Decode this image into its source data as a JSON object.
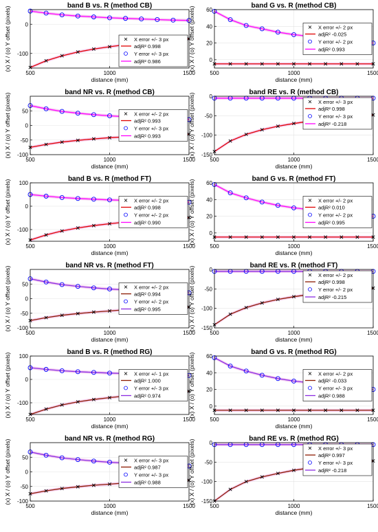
{
  "figure": {
    "xlabel": "distance (mm)",
    "ylabel": "(x) X / (o) Y offset (pixels)",
    "colors": {
      "fit_red": "#e00000",
      "fit_dark": "#8b1a00",
      "fit_magenta": "#ff00ff",
      "fit_purple": "#8a2be2",
      "marker_x": "#000000",
      "marker_o": "#0000ff",
      "band_pink": "#f4c6ee"
    }
  },
  "chart_data": [
    {
      "type": "scatter",
      "title": "band B vs. R (method CB)",
      "xlim": [
        500,
        1500
      ],
      "ylim": [
        -150,
        50
      ],
      "yticks": [
        -100,
        0
      ],
      "xticks": [
        500,
        1000,
        1500
      ],
      "grid": true,
      "legend_position": "bottom-right",
      "x_fit_color": "#e00000",
      "y_fit_color": "#ff00ff",
      "legend": {
        "x_error": "X error +/- 3 px",
        "x_r2": "adjR² 0.998",
        "y_error": "Y error +/- 3 px",
        "y_r2": "adjR² 0.986"
      },
      "series": [
        {
          "name": "X",
          "x": [
            500,
            600,
            700,
            800,
            900,
            1000,
            1100,
            1200,
            1300,
            1400,
            1500
          ],
          "y": [
            -148,
            -125,
            -108,
            -95,
            -85,
            -77,
            -70,
            -64,
            -59,
            -54,
            -50
          ]
        },
        {
          "name": "Y",
          "x": [
            500,
            600,
            700,
            800,
            900,
            1000,
            1100,
            1200,
            1300,
            1400,
            1500
          ],
          "y": [
            45,
            38,
            32,
            28,
            25,
            22,
            20,
            18,
            16,
            14,
            13
          ]
        }
      ]
    },
    {
      "type": "scatter",
      "title": "band G vs. R (method CB)",
      "xlim": [
        500,
        1500
      ],
      "ylim": [
        -10,
        60
      ],
      "yticks": [
        0,
        20,
        40,
        60
      ],
      "xticks": [
        500,
        1000,
        1500
      ],
      "grid": true,
      "legend_position": "right",
      "x_fit_color": "#e00000",
      "y_fit_color": "#ff00ff",
      "legend": {
        "x_error": "X error +/- 2 px",
        "x_r2": "adjR² -0.025",
        "y_error": "Y error +/- 2 px",
        "y_r2": "adjR² 0.993"
      },
      "series": [
        {
          "name": "X",
          "x": [
            500,
            600,
            700,
            800,
            900,
            1000,
            1100,
            1200,
            1300,
            1400,
            1500
          ],
          "y": [
            -5,
            -5,
            -5,
            -5,
            -5,
            -5,
            -5,
            -5,
            -5,
            -5,
            -5
          ]
        },
        {
          "name": "Y",
          "x": [
            500,
            600,
            700,
            800,
            900,
            1000,
            1100,
            1200,
            1300,
            1400,
            1500
          ],
          "y": [
            58,
            48,
            41,
            37,
            33,
            30,
            28,
            26,
            24,
            22,
            20
          ]
        }
      ]
    },
    {
      "type": "scatter",
      "title": "band NR vs. R (method CB)",
      "xlim": [
        500,
        1500
      ],
      "ylim": [
        -100,
        100
      ],
      "yticks": [
        -100,
        -50,
        0,
        50
      ],
      "xticks": [
        500,
        1000,
        1500
      ],
      "grid": true,
      "legend_position": "right",
      "x_fit_color": "#e00000",
      "y_fit_color": "#ff00ff",
      "legend": {
        "x_error": "X error +/- 2 px",
        "x_r2": "adjR² 0.993",
        "y_error": "Y error +/- 3 px",
        "y_r2": "adjR² 0.993"
      },
      "series": [
        {
          "name": "X",
          "x": [
            500,
            600,
            700,
            800,
            900,
            1000,
            1100,
            1200,
            1300,
            1400,
            1500
          ],
          "y": [
            -75,
            -65,
            -57,
            -51,
            -46,
            -42,
            -39,
            -36,
            -34,
            -32,
            -30
          ]
        },
        {
          "name": "Y",
          "x": [
            500,
            600,
            700,
            800,
            900,
            1000,
            1100,
            1200,
            1300,
            1400,
            1500
          ],
          "y": [
            68,
            57,
            48,
            42,
            37,
            33,
            30,
            27,
            25,
            23,
            20
          ]
        }
      ]
    },
    {
      "type": "scatter",
      "title": "band RE vs. R (method CB)",
      "xlim": [
        500,
        1500
      ],
      "ylim": [
        -150,
        0
      ],
      "yticks": [
        -150,
        -100,
        -50,
        0
      ],
      "xticks": [
        500,
        1000,
        1500
      ],
      "grid": true,
      "legend_position": "top-right",
      "x_fit_color": "#e00000",
      "y_fit_color": "#ff00ff",
      "legend": {
        "x_error": "X error +/- 3 px",
        "x_r2": "adjR² 0.998",
        "y_error": "Y error +/- 3 px",
        "y_r2": "adjR² -0.218"
      },
      "series": [
        {
          "name": "X",
          "x": [
            500,
            600,
            700,
            800,
            900,
            1000,
            1100,
            1200,
            1300,
            1400,
            1500
          ],
          "y": [
            -142,
            -115,
            -98,
            -86,
            -77,
            -70,
            -64,
            -59,
            -55,
            -51,
            -48
          ]
        },
        {
          "name": "Y",
          "x": [
            500,
            600,
            700,
            800,
            900,
            1000,
            1100,
            1200,
            1300,
            1400,
            1500
          ],
          "y": [
            -5,
            -5,
            -5,
            -5,
            -5,
            -5,
            -5,
            -5,
            -5,
            -5,
            -5
          ]
        }
      ]
    },
    {
      "type": "scatter",
      "title": "band B vs. R (method FT)",
      "xlim": [
        500,
        1500
      ],
      "ylim": [
        -150,
        100
      ],
      "yticks": [
        -100,
        0,
        100
      ],
      "xticks": [
        500,
        1000,
        1500
      ],
      "grid": true,
      "legend_position": "right",
      "x_fit_color": "#e00000",
      "y_fit_color": "#ff00ff",
      "legend": {
        "x_error": "X error +/- 2 px",
        "x_r2": "adjR² 0.998",
        "y_error": "Y error +/- 2 px",
        "y_r2": "adjR² 0.990"
      },
      "series": [
        {
          "name": "X",
          "x": [
            500,
            600,
            700,
            800,
            900,
            1000,
            1100,
            1200,
            1300,
            1400,
            1500
          ],
          "y": [
            -145,
            -123,
            -106,
            -93,
            -83,
            -75,
            -68,
            -62,
            -57,
            -53,
            -49
          ]
        },
        {
          "name": "Y",
          "x": [
            500,
            600,
            700,
            800,
            900,
            1000,
            1100,
            1200,
            1300,
            1400,
            1500
          ],
          "y": [
            50,
            43,
            37,
            33,
            30,
            27,
            25,
            23,
            21,
            19,
            17
          ]
        }
      ]
    },
    {
      "type": "scatter",
      "title": "band G vs. R (method FT)",
      "xlim": [
        500,
        1500
      ],
      "ylim": [
        -10,
        60
      ],
      "yticks": [
        0,
        20,
        40,
        60
      ],
      "xticks": [
        500,
        1000,
        1500
      ],
      "grid": true,
      "legend_position": "right",
      "x_fit_color": "#e00000",
      "y_fit_color": "#ff00ff",
      "legend": {
        "x_error": "X error +/- 2 px",
        "x_r2": "adjR² 0.010",
        "y_error": "Y error +/- 2 px",
        "y_r2": "adjR² 0.995"
      },
      "series": [
        {
          "name": "X",
          "x": [
            500,
            600,
            700,
            800,
            900,
            1000,
            1100,
            1200,
            1300,
            1400,
            1500
          ],
          "y": [
            -5,
            -5,
            -5,
            -5,
            -5,
            -5,
            -5,
            -5,
            -5,
            -5,
            -5
          ]
        },
        {
          "name": "Y",
          "x": [
            500,
            600,
            700,
            800,
            900,
            1000,
            1100,
            1200,
            1300,
            1400,
            1500
          ],
          "y": [
            58,
            48,
            42,
            37,
            33,
            30,
            28,
            26,
            24,
            22,
            20
          ]
        }
      ]
    },
    {
      "type": "scatter",
      "title": "band NR vs. R (method FT)",
      "xlim": [
        500,
        1500
      ],
      "ylim": [
        -100,
        100
      ],
      "yticks": [
        -100,
        -50,
        0,
        50
      ],
      "xticks": [
        500,
        1000,
        1500
      ],
      "grid": true,
      "legend_position": "right",
      "x_fit_color": "#8b1a00",
      "y_fit_color": "#8a2be2",
      "legend": {
        "x_error": "X error +/- 2 px",
        "x_r2": "adjR² 0.994",
        "y_error": "Y error +/- 2 px",
        "y_r2": "adjR² 0.995"
      },
      "series": [
        {
          "name": "X",
          "x": [
            500,
            600,
            700,
            800,
            900,
            1000,
            1100,
            1200,
            1300,
            1400,
            1500
          ],
          "y": [
            -75,
            -65,
            -57,
            -51,
            -46,
            -42,
            -38,
            -35,
            -33,
            -31,
            -29
          ]
        },
        {
          "name": "Y",
          "x": [
            500,
            600,
            700,
            800,
            900,
            1000,
            1100,
            1200,
            1300,
            1400,
            1500
          ],
          "y": [
            68,
            57,
            48,
            42,
            37,
            33,
            30,
            27,
            25,
            22,
            20
          ]
        }
      ]
    },
    {
      "type": "scatter",
      "title": "band RE vs. R (method FT)",
      "xlim": [
        500,
        1500
      ],
      "ylim": [
        -150,
        0
      ],
      "yticks": [
        -150,
        -100,
        -50,
        0
      ],
      "xticks": [
        500,
        1000,
        1500
      ],
      "grid": true,
      "legend_position": "top-right",
      "x_fit_color": "#8b1a00",
      "y_fit_color": "#8a2be2",
      "legend": {
        "x_error": "X error +/- 2 px",
        "x_r2": "adjR² 0.998",
        "y_error": "Y error +/- 2 px",
        "y_r2": "adjR² -0.215"
      },
      "series": [
        {
          "name": "X",
          "x": [
            500,
            600,
            700,
            800,
            900,
            1000,
            1100,
            1200,
            1300,
            1400,
            1500
          ],
          "y": [
            -142,
            -115,
            -98,
            -86,
            -77,
            -70,
            -64,
            -59,
            -55,
            -51,
            -48
          ]
        },
        {
          "name": "Y",
          "x": [
            500,
            600,
            700,
            800,
            900,
            1000,
            1100,
            1200,
            1300,
            1400,
            1500
          ],
          "y": [
            -5,
            -5,
            -5,
            -5,
            -5,
            -5,
            -5,
            -5,
            -5,
            -5,
            -5
          ]
        }
      ]
    },
    {
      "type": "scatter",
      "title": "band B vs. R (method RG)",
      "xlim": [
        500,
        1500
      ],
      "ylim": [
        -150,
        100
      ],
      "yticks": [
        -100,
        0,
        100
      ],
      "xticks": [
        500,
        1000,
        1500
      ],
      "grid": true,
      "legend_position": "right",
      "x_fit_color": "#8b1a00",
      "y_fit_color": "#8a2be2",
      "legend": {
        "x_error": "X error +/- 1 px",
        "x_r2": "adjR² 1.000",
        "y_error": "Y error +/- 3 px",
        "y_r2": "adjR² 0.974"
      },
      "series": [
        {
          "name": "X",
          "x": [
            500,
            600,
            700,
            800,
            900,
            1000,
            1100,
            1200,
            1300,
            1400,
            1500
          ],
          "y": [
            -150,
            -127,
            -109,
            -96,
            -86,
            -78,
            -71,
            -65,
            -60,
            -55,
            -51
          ]
        },
        {
          "name": "Y",
          "x": [
            500,
            600,
            700,
            800,
            900,
            1000,
            1100,
            1200,
            1300,
            1400,
            1500
          ],
          "y": [
            50,
            43,
            37,
            33,
            30,
            27,
            25,
            23,
            21,
            19,
            17
          ]
        }
      ]
    },
    {
      "type": "scatter",
      "title": "band G vs. R (method RG)",
      "xlim": [
        500,
        1500
      ],
      "ylim": [
        -10,
        60
      ],
      "yticks": [
        0,
        20,
        40,
        60
      ],
      "xticks": [
        500,
        1000,
        1500
      ],
      "grid": true,
      "legend_position": "right",
      "x_fit_color": "#8b1a00",
      "y_fit_color": "#8a2be2",
      "legend": {
        "x_error": "X error +/- 2 px",
        "x_r2": "adjR² -0.033",
        "y_error": "Y error +/- 3 px",
        "y_r2": "adjR² 0.988"
      },
      "series": [
        {
          "name": "X",
          "x": [
            500,
            600,
            700,
            800,
            900,
            1000,
            1100,
            1200,
            1300,
            1400,
            1500
          ],
          "y": [
            -5,
            -5,
            -5,
            -5,
            -5,
            -5,
            -5,
            -5,
            -5,
            -5,
            -5
          ]
        },
        {
          "name": "Y",
          "x": [
            500,
            600,
            700,
            800,
            900,
            1000,
            1100,
            1200,
            1300,
            1400,
            1500
          ],
          "y": [
            58,
            48,
            42,
            37,
            33,
            30,
            28,
            26,
            24,
            22,
            20
          ]
        }
      ]
    },
    {
      "type": "scatter",
      "title": "band NR vs. R (method RG)",
      "xlim": [
        500,
        1500
      ],
      "ylim": [
        -100,
        100
      ],
      "yticks": [
        -100,
        -50,
        0,
        50
      ],
      "xticks": [
        500,
        1000,
        1500
      ],
      "grid": true,
      "legend_position": "right",
      "x_fit_color": "#8b1a00",
      "y_fit_color": "#8a2be2",
      "legend": {
        "x_error": "X error +/- 3 px",
        "x_r2": "adjR² 0.987",
        "y_error": "Y error +/- 3 px",
        "y_r2": "adjR² 0.988"
      },
      "series": [
        {
          "name": "X",
          "x": [
            500,
            600,
            700,
            800,
            900,
            1000,
            1100,
            1200,
            1300,
            1400,
            1500
          ],
          "y": [
            -75,
            -65,
            -57,
            -51,
            -46,
            -42,
            -38,
            -35,
            -33,
            -31,
            -29
          ]
        },
        {
          "name": "Y",
          "x": [
            500,
            600,
            700,
            800,
            900,
            1000,
            1100,
            1200,
            1300,
            1400,
            1500
          ],
          "y": [
            68,
            57,
            48,
            42,
            37,
            33,
            30,
            27,
            25,
            22,
            20
          ]
        }
      ]
    },
    {
      "type": "scatter",
      "title": "band RE vs. R (method RG)",
      "xlim": [
        500,
        1500
      ],
      "ylim": [
        -150,
        0
      ],
      "yticks": [
        -150,
        -100,
        -50,
        0
      ],
      "xticks": [
        500,
        1000,
        1500
      ],
      "grid": true,
      "legend_position": "top-right",
      "x_fit_color": "#8b1a00",
      "y_fit_color": "#8a2be2",
      "legend": {
        "x_error": "X error +/- 3 px",
        "x_r2": "adjR² 0.997",
        "y_error": "Y error +/- 3 px",
        "y_r2": "adjR² -0.218"
      },
      "series": [
        {
          "name": "X",
          "x": [
            500,
            600,
            700,
            800,
            900,
            1000,
            1100,
            1200,
            1300,
            1400,
            1500
          ],
          "y": [
            -150,
            -120,
            -100,
            -88,
            -79,
            -71,
            -65,
            -60,
            -55,
            -51,
            -47
          ]
        },
        {
          "name": "Y",
          "x": [
            500,
            600,
            700,
            800,
            900,
            1000,
            1100,
            1200,
            1300,
            1400,
            1500
          ],
          "y": [
            -5,
            -5,
            -5,
            -5,
            -5,
            -5,
            -5,
            -5,
            -5,
            -5,
            -5
          ]
        }
      ]
    }
  ]
}
